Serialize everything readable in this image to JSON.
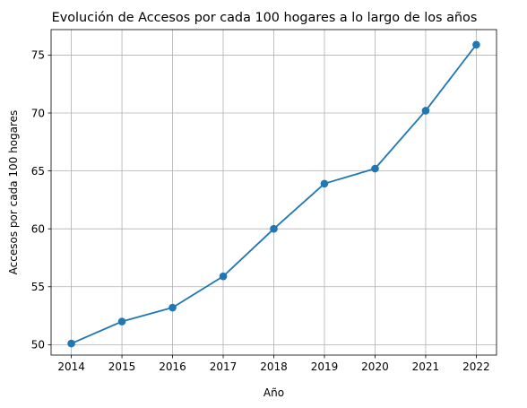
{
  "chart_data": {
    "type": "line",
    "title": "Evolución de Accesos por cada 100 hogares a lo largo de los años",
    "xlabel": "Año",
    "ylabel": "Accesos por cada 100 hogares",
    "x": [
      2014,
      2015,
      2016,
      2017,
      2018,
      2019,
      2020,
      2021,
      2022
    ],
    "x_tick_labels": [
      "2014",
      "2015",
      "2016",
      "2017",
      "2018",
      "2019",
      "2020",
      "2021",
      "2022"
    ],
    "y_ticks": [
      50,
      55,
      60,
      65,
      70,
      75
    ],
    "y_tick_labels": [
      "50",
      "55",
      "60",
      "65",
      "70",
      "75"
    ],
    "ylim": [
      49.1,
      77.2
    ],
    "grid": true,
    "marker": "circle",
    "series": [
      {
        "values": [
          50.1,
          52.0,
          53.2,
          55.9,
          60.0,
          63.9,
          65.2,
          70.2,
          75.9
        ],
        "color": "#1f77b4"
      }
    ]
  }
}
